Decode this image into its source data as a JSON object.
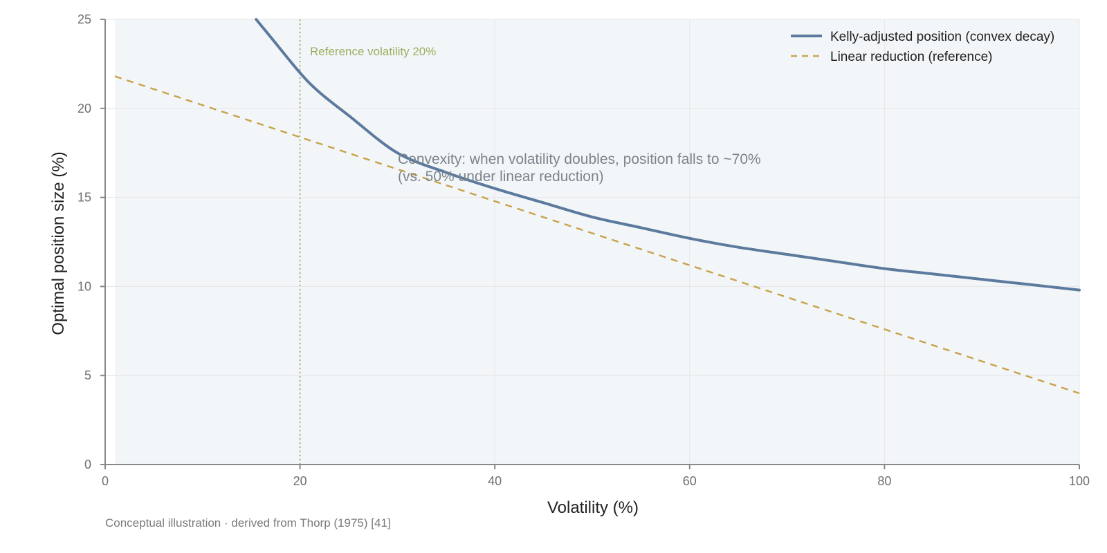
{
  "chart_data": {
    "type": "line",
    "xlabel": "Volatility (%)",
    "ylabel": "Optimal position size (%)",
    "xlim": [
      0,
      100
    ],
    "ylim": [
      0,
      25
    ],
    "x_ticks": [
      0,
      20,
      40,
      60,
      80,
      100
    ],
    "y_ticks": [
      0,
      5,
      10,
      15,
      20,
      25
    ],
    "grid": true,
    "legend_position": "top-right",
    "colors": {
      "kelly": "#5b7a9d",
      "linear": "#c9a44e",
      "reference": "#9aae5f",
      "fill": "#f3f6f9",
      "grid": "#e6e6e6",
      "axis": "#888888"
    },
    "series": [
      {
        "name": "Kelly-adjusted position (convex decay)",
        "style": "solid",
        "x": [
          15.5,
          17,
          20,
          22,
          25,
          30,
          35,
          40,
          45,
          50,
          55,
          60,
          65,
          70,
          75,
          80,
          85,
          90,
          95,
          100
        ],
        "y": [
          25,
          24.0,
          22.0,
          20.9,
          19.6,
          17.5,
          16.4,
          15.5,
          14.7,
          13.9,
          13.3,
          12.7,
          12.2,
          11.8,
          11.4,
          11.0,
          10.7,
          10.4,
          10.1,
          9.8
        ]
      },
      {
        "name": "Linear reduction (reference)",
        "style": "dashed",
        "x": [
          1,
          100
        ],
        "y": [
          21.8,
          4.0
        ]
      }
    ],
    "reference_line": {
      "x": 20,
      "label": "Reference volatility 20%"
    },
    "annotation": {
      "x": 30,
      "y": 17.2,
      "lines": [
        "Convexity: when volatility doubles, position falls to ~70%",
        "(vs. 50% under linear reduction)"
      ]
    },
    "source_note": "Conceptual illustration · derived from Thorp (1975) [41]"
  }
}
